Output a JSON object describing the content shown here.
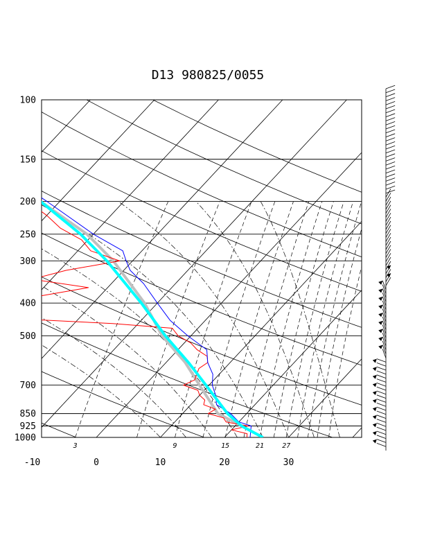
{
  "title": "D13 980825/0055",
  "chart_data": {
    "type": "line",
    "diagram": "skew-T log-P",
    "title": "D13 980825/0055",
    "xlabel": "",
    "ylabel": "",
    "x_axis": {
      "unit": "degC",
      "range": [
        -10,
        40
      ],
      "ticks": [
        -10,
        0,
        10,
        20,
        30
      ]
    },
    "y_axis": {
      "unit": "hPa",
      "scale": "log",
      "range": [
        1000,
        100
      ],
      "ticks": [
        100,
        150,
        200,
        250,
        300,
        400,
        500,
        700,
        850,
        925,
        1000
      ]
    },
    "mixing_ratio_labels": [
      "3",
      "9",
      "15",
      "21",
      "27"
    ],
    "grid": true,
    "series": [
      {
        "color": "#ff0000",
        "pressure": [
          1000,
          975,
          950,
          925,
          900,
          875,
          850,
          825,
          800,
          775,
          750,
          725,
          700,
          675,
          650,
          625,
          600,
          575,
          550,
          525,
          500,
          475,
          460,
          440,
          420,
          400,
          380,
          360,
          340,
          320,
          300,
          280,
          260,
          240,
          220,
          200,
          180,
          160,
          150,
          130,
          115,
          100
        ],
        "temperature": [
          23.5,
          23.0,
          20.0,
          22.0,
          18.0,
          17.0,
          14.0,
          14.5,
          12.0,
          11.5,
          10.0,
          9.0,
          6.0,
          7.0,
          6.5,
          6.0,
          6.5,
          5.5,
          3.0,
          1.0,
          -2.0,
          -4.0,
          -14.0,
          -35.0,
          -33.0,
          -34.0,
          -29.0,
          -23.0,
          -33.0,
          -29.0,
          -22.0,
          -28.0,
          -31.0,
          -36.0,
          -40.0,
          -45.0,
          -55.0,
          -62.0,
          -65.0,
          -70.0,
          -75.0,
          -78.0
        ]
      },
      {
        "color": "#0000ff",
        "pressure": [
          1000,
          925,
          900,
          850,
          800,
          750,
          700,
          650,
          600,
          550,
          500,
          450,
          400,
          350,
          320,
          300,
          280,
          250,
          200,
          150,
          120,
          100
        ],
        "temperature": [
          24.0,
          22.5,
          20.0,
          17.5,
          14.0,
          12.5,
          10.5,
          9.0,
          6.5,
          4.5,
          -0.5,
          -5.5,
          -10.0,
          -15.0,
          -19.0,
          -21.0,
          -23.0,
          -30.0,
          -42.0,
          -58.0,
          -68.0,
          -78.0
        ]
      },
      {
        "color": "#00ffff",
        "pressure": [
          1000,
          925,
          850,
          700,
          600,
          500,
          400,
          300,
          250,
          200,
          150,
          120,
          100
        ],
        "temperature": [
          26.0,
          21.0,
          17.0,
          9.5,
          3.5,
          -4.0,
          -12.5,
          -24.0,
          -32.0,
          -43.0,
          -58.0,
          -62.0,
          -67.0
        ]
      },
      {
        "color": "#c0c0c0",
        "pressure": [
          1000,
          925,
          850,
          700,
          600,
          500,
          400,
          300,
          250,
          200,
          150,
          120,
          100
        ],
        "temperature": [
          26.0,
          21.0,
          15.5,
          8.5,
          3.0,
          -4.5,
          -12.0,
          -23.0,
          -31.0,
          -43.0,
          -58.0,
          -64.0,
          -70.0
        ]
      }
    ],
    "wind_barbs_shown": true
  }
}
